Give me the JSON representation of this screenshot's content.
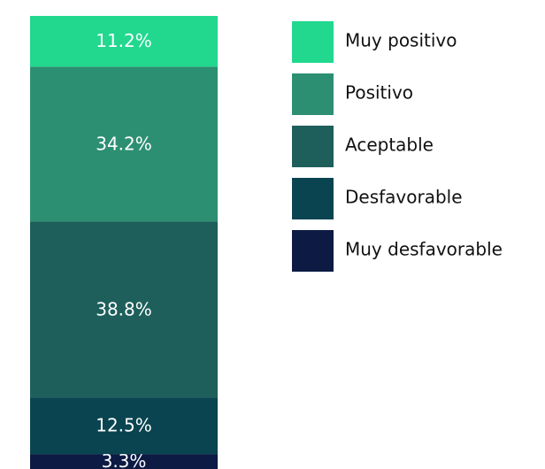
{
  "chart_data": {
    "type": "bar",
    "stacked": true,
    "ylim": [
      0,
      100
    ],
    "series": [
      {
        "name": "Muy positivo",
        "color": "#21d88e",
        "values": [
          11.2
        ],
        "value_labels": [
          "11.2%"
        ]
      },
      {
        "name": "Positivo",
        "color": "#2d8f71",
        "values": [
          34.2
        ],
        "value_labels": [
          "34.2%"
        ]
      },
      {
        "name": "Aceptable",
        "color": "#1e5f5b",
        "values": [
          38.8
        ],
        "value_labels": [
          "38.8%"
        ]
      },
      {
        "name": "Desfavorable",
        "color": "#0a4450",
        "values": [
          12.5
        ],
        "value_labels": [
          "12.5%"
        ]
      },
      {
        "name": "Muy desfavorable",
        "color": "#0c1a44",
        "values": [
          3.3
        ],
        "value_labels": [
          "3.3%"
        ]
      }
    ]
  }
}
